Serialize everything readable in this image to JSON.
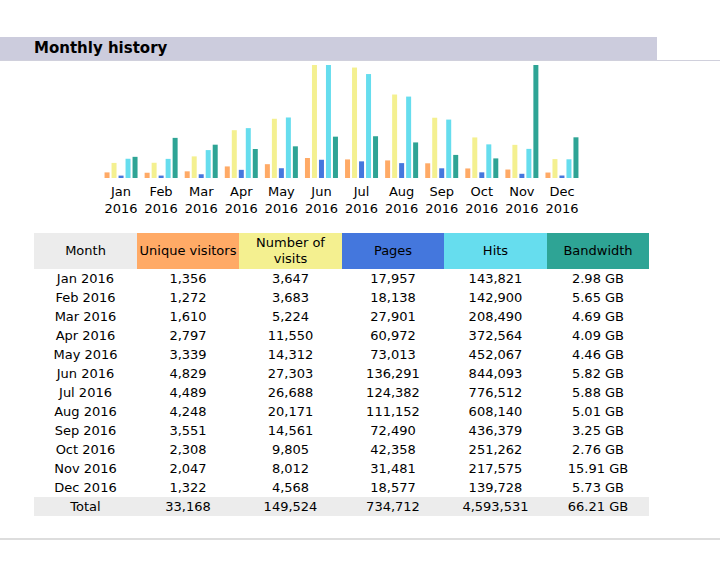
{
  "chart_data": {
    "type": "bar",
    "title": "Monthly history",
    "tick_labels": "x",
    "grid": false,
    "data_labels": false,
    "categories": [
      "Jan 2016",
      "Feb 2016",
      "Mar 2016",
      "Apr 2016",
      "May 2016",
      "Jun 2016",
      "Jul 2016",
      "Aug 2016",
      "Sep 2016",
      "Oct 2016",
      "Nov 2016",
      "Dec 2016"
    ],
    "ylim": [
      0,
      27303
    ],
    "y2lim": [
      0,
      844093
    ],
    "y3lim": [
      0,
      15.91
    ],
    "series": [
      {
        "name": "Unique visitors",
        "color": "#ffaa66",
        "axis": "y",
        "values": [
          1356,
          1272,
          1610,
          2797,
          3339,
          4829,
          4489,
          4248,
          3551,
          2308,
          2047,
          1322
        ],
        "value_labels": [
          "1,356",
          "1,272",
          "1,610",
          "2,797",
          "3,339",
          "4,829",
          "4,489",
          "4,248",
          "3,551",
          "2,308",
          "2,047",
          "1,322"
        ]
      },
      {
        "name": "Number of visits",
        "color": "#f4f090",
        "axis": "y",
        "values": [
          3647,
          3683,
          5224,
          11550,
          14312,
          27303,
          26688,
          20171,
          14561,
          9805,
          8012,
          4568
        ],
        "value_labels": [
          "3,647",
          "3,683",
          "5,224",
          "11,550",
          "14,312",
          "27,303",
          "26,688",
          "20,171",
          "14,561",
          "9,805",
          "8,012",
          "4,568"
        ]
      },
      {
        "name": "Pages",
        "color": "#4477dd",
        "axis": "y2",
        "values": [
          17957,
          18138,
          27901,
          60972,
          73013,
          136291,
          124382,
          111152,
          72490,
          42358,
          31481,
          18577
        ],
        "value_labels": [
          "17,957",
          "18,138",
          "27,901",
          "60,972",
          "73,013",
          "136,291",
          "124,382",
          "111,152",
          "72,490",
          "42,358",
          "31,481",
          "18,577"
        ]
      },
      {
        "name": "Hits",
        "color": "#66ddee",
        "axis": "y2",
        "values": [
          143821,
          142900,
          208490,
          372564,
          452067,
          844093,
          776512,
          608140,
          436379,
          251262,
          217575,
          139728
        ],
        "value_labels": [
          "143,821",
          "142,900",
          "208,490",
          "372,564",
          "452,067",
          "844,093",
          "776,512",
          "608,140",
          "436,379",
          "251,262",
          "217,575",
          "139,728"
        ]
      },
      {
        "name": "Bandwidth",
        "color": "#2ea495",
        "axis": "y3",
        "values": [
          2.98,
          5.65,
          4.69,
          4.09,
          4.46,
          5.82,
          5.88,
          5.01,
          3.25,
          2.76,
          15.91,
          5.73
        ],
        "value_labels": [
          "2.98 GB",
          "5.65 GB",
          "4.69 GB",
          "4.09 GB",
          "4.46 GB",
          "5.82 GB",
          "5.88 GB",
          "5.01 GB",
          "3.25 GB",
          "2.76 GB",
          "15.91 GB",
          "5.73 GB"
        ]
      }
    ]
  },
  "table": {
    "header": [
      "Month",
      "Unique visitors",
      "Number of visits",
      "Pages",
      "Hits",
      "Bandwidth"
    ],
    "header_color": "#ececec",
    "total": [
      "Total",
      "33,168",
      "149,524",
      "734,712",
      "4,593,531",
      "66.21 GB"
    ]
  }
}
